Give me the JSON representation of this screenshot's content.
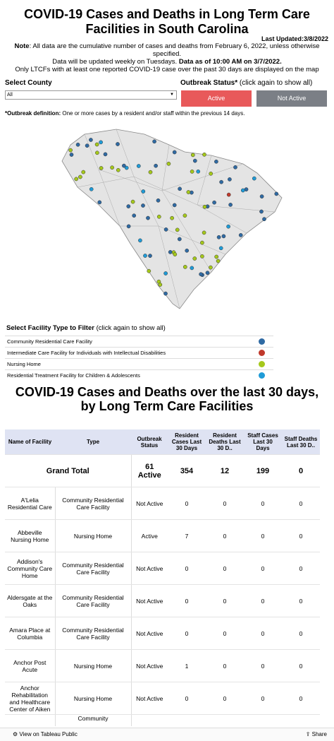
{
  "header": {
    "title": "COVID-19 Cases and Deaths in Long Term Care Facilities in South Carolina",
    "last_updated": "Last Updated:3/8/2022",
    "note_label": "Note",
    "note_text": ": All data are the cumulative number of cases and deaths from February 6, 2022, unless otherwise specified.",
    "update_text": "Data will be updated weekly on Tuesdays.",
    "data_as_of": "Data as of 10:00 AM on 3/7/2022.",
    "ltcf_note": "Only LTCFs with at least one reported COVID-19 case over the past 30 days are displayed on the map"
  },
  "filters": {
    "county_label": "Select County",
    "county_value": "All",
    "outbreak_label": "Outbreak Status*",
    "outbreak_hint": "(click again to show all)",
    "buttons": [
      "Active",
      "Not Active"
    ],
    "definition_label": "*Outbreak definition:",
    "definition_text": "One or more cases by a resident and/or staff within the previous 14 days."
  },
  "facility_filter": {
    "label": "Select Facility Type to Filter",
    "hint": "(click again to show all)",
    "types": [
      {
        "name": "Community Residential Care Facility",
        "color": "#2f6aa3"
      },
      {
        "name": "Intermediate Care Facility for Individuals with Intellectual Disabilities",
        "color": "#c0392b"
      },
      {
        "name": "Nursing Home",
        "color": "#a5c81b"
      },
      {
        "name": "Residential Treatment Facility for Children & Adolescents",
        "color": "#1f9bd7"
      }
    ]
  },
  "table": {
    "title_lines": [
      "COVID-19 Cases and Deaths over the last 30 days,",
      "by Long Term Care Facilities"
    ],
    "columns": [
      "Name of Facility",
      "Type",
      "Outbreak Status",
      "Resident Cases Last 30 Days",
      "Resident Deaths Last 30 D..",
      "Staff Cases Last 30 Days",
      "Staff Deaths Last 30 D.."
    ],
    "grand_total": {
      "label": "Grand Total",
      "status": "61 Active",
      "values": [
        354,
        12,
        199,
        0
      ]
    },
    "rows": [
      {
        "name": "A'Lelia Residential Care",
        "type": "Community Residential Care Facility",
        "status": "Not Active",
        "values": [
          0,
          0,
          0,
          0
        ]
      },
      {
        "name": "Abbeville Nursing Home",
        "type": "Nursing Home",
        "status": "Active",
        "values": [
          7,
          0,
          0,
          0
        ]
      },
      {
        "name": "Addison's Community Care Home",
        "type": "Community Residential Care Facility",
        "status": "Not Active",
        "values": [
          0,
          0,
          0,
          0
        ]
      },
      {
        "name": "Aldersgate at the Oaks",
        "type": "Community Residential Care Facility",
        "status": "Not Active",
        "values": [
          0,
          0,
          0,
          0
        ]
      },
      {
        "name": "Amara Place at Columbia",
        "type": "Community Residential Care Facility",
        "status": "Not Active",
        "values": [
          0,
          0,
          0,
          0
        ]
      },
      {
        "name": "Anchor Post Acute",
        "type": "Nursing Home",
        "status": "Not Active",
        "values": [
          1,
          0,
          0,
          0
        ]
      },
      {
        "name": "Anchor Rehabilitation and Healthcare Center of Aiken",
        "type": "Nursing Home",
        "status": "Not Active",
        "values": [
          0,
          0,
          0,
          0
        ]
      },
      {
        "type": "Community"
      }
    ]
  },
  "footer": {
    "view": "View on Tableau Public",
    "share": "Share"
  }
}
